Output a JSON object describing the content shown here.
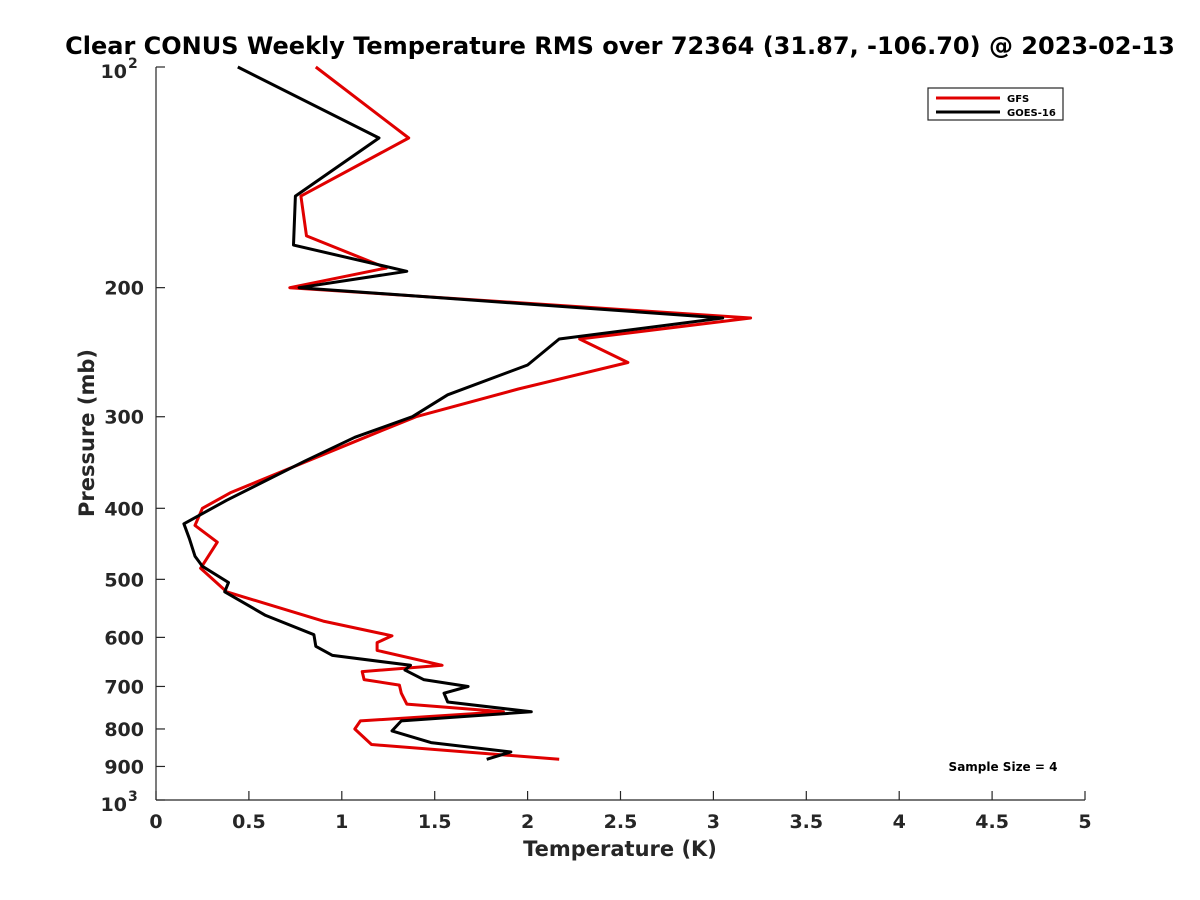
{
  "chart_data": {
    "type": "line",
    "title": "Clear CONUS Weekly Temperature RMS over 72364 (31.87, -106.70) @ 2023-02-13",
    "xlabel": "Temperature (K)",
    "ylabel": "Pressure (mb)",
    "xlim": [
      0,
      5
    ],
    "ylim": [
      100,
      1000
    ],
    "y_scale": "log",
    "y_reversed": true,
    "grid": false,
    "legend_position": "top-right",
    "x_ticks": [
      "0",
      "0.5",
      "1",
      "1.5",
      "2",
      "2.5",
      "3",
      "3.5",
      "4",
      "4.5",
      "5"
    ],
    "x_tick_values": [
      0,
      0.5,
      1,
      1.5,
      2,
      2.5,
      3,
      3.5,
      4,
      4.5,
      5
    ],
    "y_ticks": [
      {
        "value": 100,
        "base": "10",
        "exp": "2"
      },
      {
        "value": 200,
        "label": "200"
      },
      {
        "value": 300,
        "label": "300"
      },
      {
        "value": 400,
        "label": "400"
      },
      {
        "value": 500,
        "label": "500"
      },
      {
        "value": 600,
        "label": "600"
      },
      {
        "value": 700,
        "label": "700"
      },
      {
        "value": 800,
        "label": "800"
      },
      {
        "value": 900,
        "label": "900"
      },
      {
        "value": 1000,
        "base": "10",
        "exp": "3"
      }
    ],
    "annotation": "Sample Size = 4",
    "series": [
      {
        "name": "GFS",
        "color": "#e00000",
        "points": [
          [
            0.86,
            100
          ],
          [
            1.36,
            125
          ],
          [
            0.78,
            150
          ],
          [
            0.81,
            170
          ],
          [
            1.24,
            188
          ],
          [
            0.72,
            200
          ],
          [
            3.2,
            220
          ],
          [
            2.28,
            235
          ],
          [
            2.54,
            253
          ],
          [
            1.95,
            275
          ],
          [
            1.4,
            300
          ],
          [
            1.1,
            322
          ],
          [
            0.4,
            381
          ],
          [
            0.25,
            400
          ],
          [
            0.21,
            422
          ],
          [
            0.33,
            445
          ],
          [
            0.24,
            483
          ],
          [
            0.38,
            520
          ],
          [
            0.9,
            570
          ],
          [
            1.27,
            597
          ],
          [
            1.19,
            610
          ],
          [
            1.19,
            625
          ],
          [
            1.54,
            655
          ],
          [
            1.11,
            668
          ],
          [
            1.12,
            685
          ],
          [
            1.31,
            697
          ],
          [
            1.32,
            715
          ],
          [
            1.35,
            740
          ],
          [
            1.87,
            758
          ],
          [
            1.1,
            780
          ],
          [
            1.07,
            800
          ],
          [
            1.16,
            840
          ],
          [
            2.17,
            880
          ]
        ]
      },
      {
        "name": "GOES-16",
        "color": "#000000",
        "points": [
          [
            0.44,
            100
          ],
          [
            1.2,
            125
          ],
          [
            0.75,
            150
          ],
          [
            0.74,
            175
          ],
          [
            1.35,
            190
          ],
          [
            0.77,
            200
          ],
          [
            3.05,
            220
          ],
          [
            2.17,
            235
          ],
          [
            2.0,
            255
          ],
          [
            1.57,
            280
          ],
          [
            1.38,
            300
          ],
          [
            1.07,
            320
          ],
          [
            0.8,
            345
          ],
          [
            0.38,
            390
          ],
          [
            0.15,
            420
          ],
          [
            0.18,
            440
          ],
          [
            0.21,
            465
          ],
          [
            0.25,
            480
          ],
          [
            0.39,
            505
          ],
          [
            0.37,
            520
          ],
          [
            0.59,
            560
          ],
          [
            0.85,
            595
          ],
          [
            0.86,
            617
          ],
          [
            0.95,
            635
          ],
          [
            1.37,
            655
          ],
          [
            1.34,
            665
          ],
          [
            1.44,
            685
          ],
          [
            1.68,
            700
          ],
          [
            1.55,
            715
          ],
          [
            1.57,
            735
          ],
          [
            2.02,
            758
          ],
          [
            1.32,
            780
          ],
          [
            1.27,
            805
          ],
          [
            1.48,
            835
          ],
          [
            1.91,
            860
          ],
          [
            1.78,
            880
          ]
        ]
      }
    ]
  }
}
